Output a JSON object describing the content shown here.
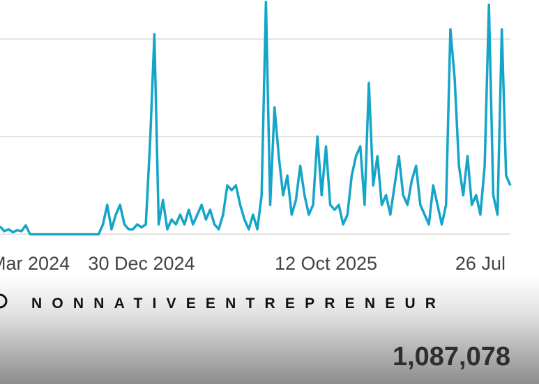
{
  "chart_data": {
    "type": "line",
    "categories": [
      null,
      null,
      null,
      null,
      null,
      null,
      null,
      "Mar 2024",
      null,
      null,
      null,
      null,
      null,
      null,
      null,
      null,
      null,
      null,
      null,
      null,
      null,
      null,
      null,
      null,
      null,
      null,
      null,
      null,
      null,
      null,
      null,
      null,
      null,
      "30 Dec 2024",
      null,
      null,
      null,
      null,
      null,
      null,
      null,
      null,
      null,
      null,
      null,
      null,
      null,
      null,
      null,
      null,
      null,
      null,
      null,
      null,
      null,
      null,
      null,
      null,
      null,
      null,
      null,
      null,
      null,
      null,
      null,
      null,
      null,
      null,
      null,
      null,
      null,
      null,
      null,
      null,
      null,
      null,
      "12 Oct 2025",
      null,
      null,
      null,
      null,
      null,
      null,
      null,
      null,
      null,
      null,
      null,
      null,
      null,
      null,
      null,
      null,
      null,
      null,
      null,
      null,
      null,
      null,
      null,
      null,
      null,
      null,
      null,
      null,
      null,
      null,
      null,
      null,
      null,
      null,
      null,
      "26 Jul",
      null,
      null,
      null,
      null,
      null,
      null,
      null
    ],
    "values": [
      0.08,
      0.03,
      0.05,
      0.02,
      0.04,
      0.03,
      0.09,
      0,
      0,
      0,
      0,
      0,
      0,
      0,
      0,
      0,
      0,
      0,
      0,
      0,
      0,
      0,
      0,
      0,
      0.1,
      0.3,
      0.05,
      0.2,
      0.3,
      0.1,
      0.05,
      0.05,
      0.1,
      0.07,
      0.1,
      0.95,
      2.05,
      0.1,
      0.35,
      0.05,
      0.15,
      0.1,
      0.2,
      0.1,
      0.25,
      0.1,
      0.2,
      0.3,
      0.15,
      0.25,
      0.1,
      0.05,
      0.2,
      0.5,
      0.45,
      0.5,
      0.3,
      0.15,
      0.05,
      0.2,
      0.05,
      0.4,
      2.38,
      0.3,
      1.3,
      0.8,
      0.4,
      0.6,
      0.2,
      0.35,
      0.7,
      0.4,
      0.2,
      0.3,
      1.0,
      0.4,
      0.9,
      0.3,
      0.25,
      0.3,
      0.1,
      0.2,
      0.6,
      0.8,
      0.9,
      0.3,
      1.55,
      0.5,
      0.8,
      0.3,
      0.4,
      0.2,
      0.5,
      0.8,
      0.4,
      0.3,
      0.55,
      0.7,
      0.3,
      0.2,
      0.1,
      0.5,
      0.3,
      0.1,
      0.3,
      2.1,
      1.6,
      0.7,
      0.4,
      0.8,
      0.3,
      0.4,
      0.2,
      0.7,
      2.35,
      0.4,
      0.2,
      2.1,
      0.6,
      0.5
    ],
    "color": "#14a5c8",
    "ylim": [
      0,
      2.4
    ],
    "yticks": [
      0,
      1,
      2
    ],
    "grid": true
  },
  "watermark": "NONNATIVEENTREPRENEUR",
  "total": "1,087,078"
}
